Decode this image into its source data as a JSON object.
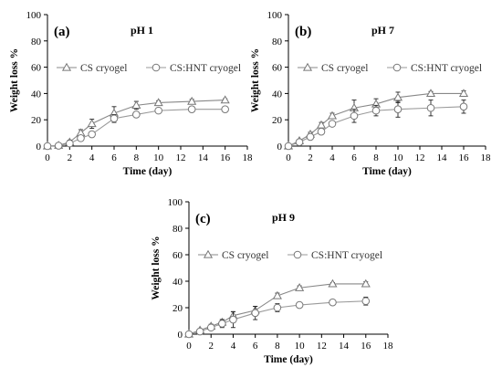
{
  "chart_data": [
    {
      "type": "line",
      "panel_label": "(a)",
      "title": "pH 1",
      "xlabel": "Time (day)",
      "ylabel": "Weight loss %",
      "xlim": [
        0,
        18
      ],
      "ylim": [
        0,
        100
      ],
      "xticks": [
        0,
        2,
        4,
        6,
        8,
        10,
        12,
        14,
        16,
        18
      ],
      "yticks": [
        0,
        20,
        40,
        60,
        80,
        100
      ],
      "legend_position": "top-right",
      "series": [
        {
          "name": "CS cryogel",
          "marker": "triangle",
          "x": [
            0,
            1,
            2,
            3,
            4,
            6,
            8,
            10,
            13,
            16
          ],
          "y": [
            0,
            0.5,
            3,
            10,
            17,
            25,
            31,
            33,
            34,
            35
          ],
          "err": [
            0,
            0.5,
            1.5,
            2.5,
            3.5,
            5,
            3,
            1.5,
            1.5,
            1
          ]
        },
        {
          "name": "CS:HNT cryogel",
          "marker": "circle",
          "x": [
            0,
            1,
            2,
            3,
            4,
            6,
            8,
            10,
            13,
            16
          ],
          "y": [
            0,
            0.3,
            2,
            6,
            9,
            21,
            24,
            27,
            28,
            28
          ],
          "err": [
            0,
            0.3,
            1,
            2,
            2,
            3,
            2,
            2,
            2,
            1
          ]
        }
      ]
    },
    {
      "type": "line",
      "panel_label": "(b)",
      "title": "pH 7",
      "xlabel": "Time (day)",
      "ylabel": "Weight loss %",
      "xlim": [
        0,
        18
      ],
      "ylim": [
        0,
        100
      ],
      "xticks": [
        0,
        2,
        4,
        6,
        8,
        10,
        12,
        14,
        16,
        18
      ],
      "yticks": [
        0,
        20,
        40,
        60,
        80,
        100
      ],
      "legend_position": "top-right",
      "series": [
        {
          "name": "CS cryogel",
          "marker": "triangle",
          "x": [
            0,
            1,
            2,
            3,
            4,
            6,
            8,
            10,
            13,
            16
          ],
          "y": [
            0,
            4,
            9,
            16,
            23,
            29,
            32,
            37,
            40,
            40
          ],
          "err": [
            0,
            1,
            1.5,
            2,
            2,
            6,
            4,
            4,
            1.5,
            2
          ]
        },
        {
          "name": "CS:HNT cryogel",
          "marker": "circle",
          "x": [
            0,
            1,
            2,
            3,
            4,
            6,
            8,
            10,
            13,
            16
          ],
          "y": [
            0,
            3,
            7,
            11,
            17,
            23,
            27,
            28,
            29,
            30
          ],
          "err": [
            0,
            1,
            1.5,
            2,
            2,
            5,
            4,
            6,
            6,
            5
          ]
        }
      ]
    },
    {
      "type": "line",
      "panel_label": "(c)",
      "title": "pH 9",
      "xlabel": "Time (day)",
      "ylabel": "Weight loss %",
      "xlim": [
        0,
        18
      ],
      "ylim": [
        0,
        100
      ],
      "xticks": [
        0,
        2,
        4,
        6,
        8,
        10,
        12,
        14,
        16,
        18
      ],
      "yticks": [
        0,
        20,
        40,
        60,
        80,
        100
      ],
      "legend_position": "top-right",
      "series": [
        {
          "name": "CS cryogel",
          "marker": "triangle",
          "x": [
            0,
            1,
            2,
            3,
            4,
            6,
            8,
            10,
            13,
            16
          ],
          "y": [
            0,
            3,
            6,
            9,
            14,
            18,
            29,
            35,
            38,
            38
          ],
          "err": [
            0,
            1,
            1.5,
            2,
            3,
            3,
            2,
            1.5,
            1,
            1.5
          ]
        },
        {
          "name": "CS:HNT cryogel",
          "marker": "circle",
          "x": [
            0,
            1,
            2,
            3,
            4,
            6,
            8,
            10,
            13,
            16
          ],
          "y": [
            0,
            2,
            5,
            8,
            11,
            16,
            20,
            22,
            24,
            25
          ],
          "err": [
            0,
            1,
            1.5,
            3,
            6,
            5,
            3,
            2,
            1,
            3
          ]
        }
      ]
    }
  ]
}
